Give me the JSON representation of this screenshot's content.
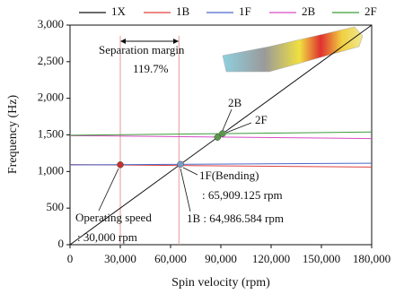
{
  "chart_data": {
    "type": "line",
    "x_label": "Spin velocity (rpm)",
    "y_label": "Frequency (Hz)",
    "x": [
      0,
      180000
    ],
    "series": [
      {
        "name": "1X",
        "color": "#111111",
        "values": [
          0,
          3000
        ]
      },
      {
        "name": "1B",
        "color": "#e0413a",
        "values": [
          1095,
          1060
        ]
      },
      {
        "name": "1F",
        "color": "#4a67c9",
        "values": [
          1090,
          1113
        ]
      },
      {
        "name": "2B",
        "color": "#d64bc3",
        "values": [
          1490,
          1450
        ]
      },
      {
        "name": "2F",
        "color": "#3a9a3a",
        "values": [
          1495,
          1540
        ]
      }
    ],
    "points": [
      {
        "x": 30000,
        "y": 1092,
        "color": "#c8322c"
      },
      {
        "x": 65909.125,
        "y": 1098,
        "color": "#7b9cc9"
      },
      {
        "x": 88000,
        "y": 1467,
        "color": "#5a9a4a"
      },
      {
        "x": 91000,
        "y": 1518,
        "color": "#5a9a4a"
      }
    ],
    "vlines": [
      30000,
      64986.584
    ],
    "vline_color": "#e79a9a",
    "annotations": [
      "Separation margin",
      "119.7%",
      "2B",
      "2F",
      "1F(Bending)",
      ": 65,909.125 rpm",
      "Operating speed",
      ": 30,000 rpm",
      "1B : 64,986.584 rpm"
    ],
    "xlim": [
      0,
      180000
    ],
    "xticks": [
      0,
      {
        "value": 30000,
        "label": "30,000"
      },
      {
        "value": 60000,
        "label": "60,000"
      },
      {
        "value": 90000,
        "label": "90,000"
      },
      {
        "value": 120000,
        "label": "120,000"
      },
      {
        "value": 150000,
        "label": "150,000"
      },
      {
        "value": 180000,
        "label": "180,000"
      }
    ],
    "ylim": [
      0,
      3000
    ],
    "yticks": [
      0,
      500,
      {
        "value": 1000,
        "label": "1,000"
      },
      {
        "value": 1500,
        "label": "1,500"
      },
      {
        "value": 2000,
        "label": "2,000"
      },
      {
        "value": 2500,
        "label": "2,500"
      },
      {
        "value": 3000,
        "label": "3,000"
      }
    ]
  }
}
